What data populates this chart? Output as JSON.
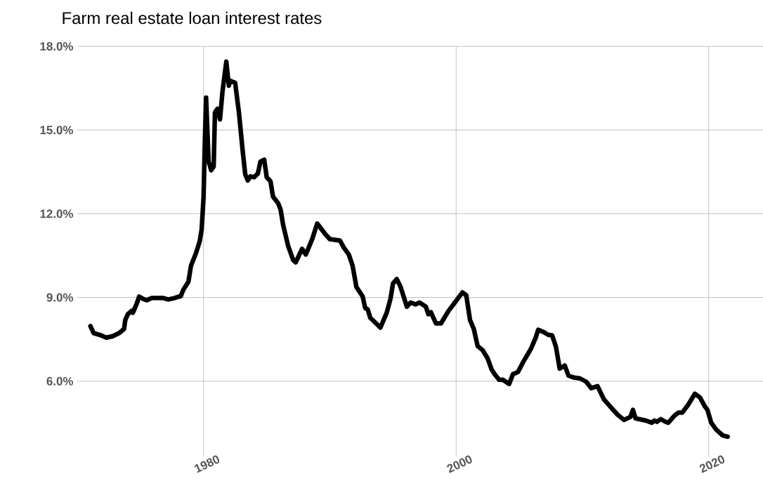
{
  "chart_data": {
    "type": "line",
    "title": "Farm real estate loan interest rates",
    "x": [
      1971.04,
      1971.3,
      1971.77,
      1972.3,
      1972.8,
      1973.3,
      1973.7,
      1973.8,
      1974.0,
      1974.3,
      1974.4,
      1974.7,
      1974.9,
      1975.2,
      1975.5,
      1975.9,
      1976.8,
      1977.2,
      1977.7,
      1978.2,
      1978.4,
      1978.8,
      1979.0,
      1979.4,
      1979.7,
      1979.85,
      1980.0,
      1980.1,
      1980.2,
      1980.4,
      1980.6,
      1980.8,
      1980.9,
      1981.1,
      1981.3,
      1981.5,
      1981.8,
      1982.0,
      1982.1,
      1982.5,
      1982.8,
      1983.1,
      1983.3,
      1983.5,
      1983.7,
      1984.0,
      1984.3,
      1984.5,
      1984.8,
      1985.0,
      1985.3,
      1985.5,
      1985.9,
      1986.1,
      1986.3,
      1986.7,
      1987.1,
      1987.3,
      1987.8,
      1988.1,
      1988.6,
      1989.0,
      1989.6,
      1990.0,
      1990.8,
      1991.1,
      1991.5,
      1991.8,
      1992.1,
      1992.6,
      1992.8,
      1993.0,
      1993.2,
      1994.0,
      1994.5,
      1994.8,
      1995.0,
      1995.3,
      1995.6,
      1996.1,
      1996.4,
      1996.8,
      1997.1,
      1997.6,
      1997.8,
      1998.0,
      1998.4,
      1998.8,
      1999.4,
      1999.9,
      2000.5,
      2000.8,
      2001.1,
      2001.4,
      2001.7,
      2002.1,
      2002.5,
      2002.8,
      2003.0,
      2003.4,
      2003.7,
      2004.2,
      2004.5,
      2004.9,
      2005.3,
      2005.9,
      2006.3,
      2006.5,
      2006.9,
      2007.3,
      2007.6,
      2007.9,
      2008.2,
      2008.6,
      2008.9,
      2009.3,
      2009.8,
      2010.3,
      2010.7,
      2011.2,
      2011.7,
      2012.3,
      2012.8,
      2013.3,
      2013.8,
      2014.0,
      2014.2,
      2015.0,
      2015.5,
      2015.7,
      2015.9,
      2016.2,
      2016.6,
      2016.8,
      2017.3,
      2017.6,
      2017.9,
      2018.4,
      2018.9,
      2019.3,
      2019.7,
      2019.9,
      2020.2,
      2020.6,
      2021.1,
      2021.5
    ],
    "series": [
      {
        "color": "#000000",
        "values": [
          7.97,
          7.72,
          7.66,
          7.56,
          7.61,
          7.72,
          7.87,
          8.19,
          8.4,
          8.52,
          8.45,
          8.77,
          9.03,
          8.95,
          8.9,
          8.98,
          8.98,
          8.93,
          8.98,
          9.05,
          9.28,
          9.56,
          10.13,
          10.59,
          11.02,
          11.45,
          12.6,
          14.6,
          16.16,
          13.87,
          13.56,
          13.69,
          15.63,
          15.76,
          15.38,
          16.39,
          17.45,
          16.59,
          16.77,
          16.69,
          15.63,
          14.24,
          13.41,
          13.19,
          13.34,
          13.31,
          13.44,
          13.87,
          13.94,
          13.31,
          13.16,
          12.61,
          12.38,
          12.15,
          11.6,
          10.84,
          10.34,
          10.26,
          10.74,
          10.54,
          11.09,
          11.65,
          11.29,
          11.09,
          11.04,
          10.79,
          10.54,
          10.14,
          9.38,
          9.03,
          8.62,
          8.57,
          8.27,
          7.92,
          8.45,
          8.95,
          9.5,
          9.66,
          9.38,
          8.67,
          8.82,
          8.75,
          8.82,
          8.67,
          8.4,
          8.47,
          8.07,
          8.07,
          8.52,
          8.82,
          9.18,
          9.08,
          8.19,
          7.87,
          7.26,
          7.11,
          6.81,
          6.43,
          6.28,
          6.05,
          6.05,
          5.9,
          6.25,
          6.33,
          6.68,
          7.14,
          7.56,
          7.84,
          7.77,
          7.66,
          7.64,
          7.24,
          6.45,
          6.56,
          6.2,
          6.13,
          6.1,
          5.98,
          5.75,
          5.82,
          5.35,
          5.04,
          4.79,
          4.61,
          4.72,
          4.97,
          4.67,
          4.59,
          4.51,
          4.59,
          4.54,
          4.64,
          4.54,
          4.51,
          4.77,
          4.87,
          4.87,
          5.17,
          5.55,
          5.42,
          5.09,
          4.97,
          4.51,
          4.26,
          4.06,
          4.01
        ]
      }
    ],
    "xlim": [
      1970,
      2024.3
    ],
    "ylim": [
      3.3,
      18
    ],
    "xticks": [
      1980,
      2000,
      2020
    ],
    "yticks": [
      {
        "value": 6,
        "label": "6.0%"
      },
      {
        "value": 9,
        "label": "9.0%"
      },
      {
        "value": 12,
        "label": "12.0%"
      },
      {
        "value": 15,
        "label": "15.0%"
      },
      {
        "value": 18,
        "label": "18.0%"
      }
    ],
    "grid": true,
    "marker": "none",
    "line_style": "solid"
  }
}
